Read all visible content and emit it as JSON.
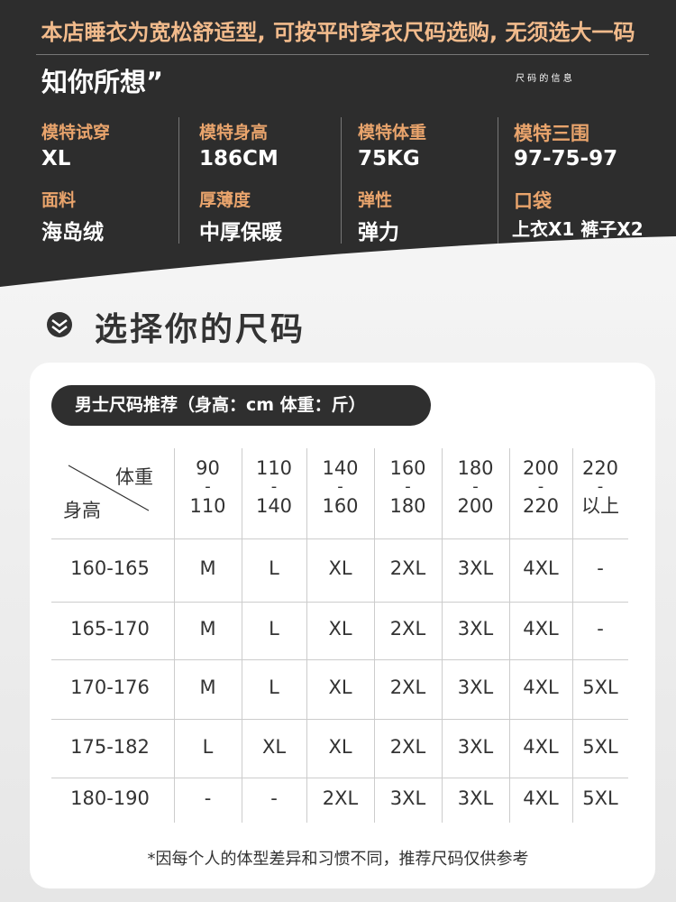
{
  "banner": "本店睡衣为宽松舒适型, 可按平时穿衣尺码选购, 无须选大一码",
  "headline": "知你所想”",
  "headline_side": "尺 码 的 信 息",
  "specs": [
    [
      {
        "label": "模特试穿",
        "value": "XL"
      },
      {
        "label": "模特身高",
        "value": "186CM"
      },
      {
        "label": "模特体重",
        "value": "75KG"
      },
      {
        "label": "模特三围",
        "value": "97-75-97"
      }
    ],
    [
      {
        "label": "面料",
        "value": "海岛绒"
      },
      {
        "label": "厚薄度",
        "value": "中厚保暖"
      },
      {
        "label": "弹性",
        "value": "弹力"
      },
      {
        "label": "口袋",
        "value": "上衣X1  裤子X2"
      }
    ]
  ],
  "section_title": "选择你的尺码",
  "table": {
    "caption": "男士尺码推荐（身高：cm 体重：斤）",
    "corner_top": "体重",
    "corner_bottom": "身高",
    "columns": [
      {
        "top": "90",
        "sep": "-",
        "bottom": "110"
      },
      {
        "top": "110",
        "sep": "-",
        "bottom": "140"
      },
      {
        "top": "140",
        "sep": "-",
        "bottom": "160"
      },
      {
        "top": "160",
        "sep": "-",
        "bottom": "180"
      },
      {
        "top": "180",
        "sep": "-",
        "bottom": "200"
      },
      {
        "top": "200",
        "sep": "-",
        "bottom": "220"
      },
      {
        "top": "220",
        "sep": "-",
        "bottom": "以上"
      }
    ],
    "rows": [
      {
        "height": "160-165",
        "sizes": [
          "M",
          "L",
          "XL",
          "2XL",
          "3XL",
          "4XL",
          "-"
        ]
      },
      {
        "height": "165-170",
        "sizes": [
          "M",
          "L",
          "XL",
          "2XL",
          "3XL",
          "4XL",
          "-"
        ]
      },
      {
        "height": "170-176",
        "sizes": [
          "M",
          "L",
          "XL",
          "2XL",
          "3XL",
          "4XL",
          "5XL"
        ]
      },
      {
        "height": "175-182",
        "sizes": [
          "L",
          "XL",
          "XL",
          "2XL",
          "3XL",
          "4XL",
          "5XL"
        ]
      },
      {
        "height": "180-190",
        "sizes": [
          "-",
          "-",
          "2XL",
          "3XL",
          "3XL",
          "4XL",
          "5XL"
        ]
      }
    ],
    "footnote": "*因每个人的体型差异和习惯不同，推荐尺码仅供参考"
  }
}
